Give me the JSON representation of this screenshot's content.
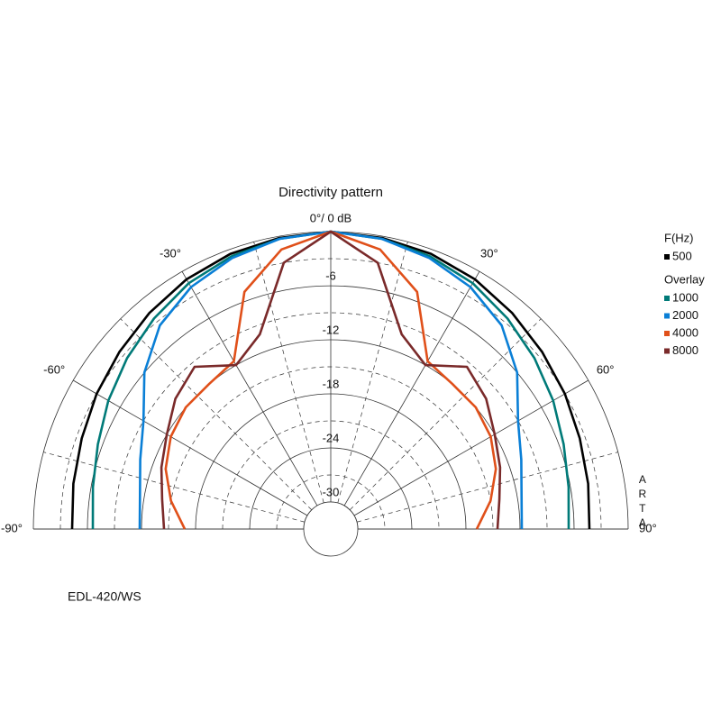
{
  "chart_data": {
    "type": "polar",
    "title": "Directivity pattern",
    "x": [
      -90,
      -80,
      -70,
      -60,
      -50,
      -40,
      -30,
      -20,
      -10,
      0,
      10,
      20,
      30,
      40,
      50,
      60,
      70,
      80,
      90
    ],
    "series": [
      {
        "name": "500",
        "color": "#000000",
        "values": [
          -4.3,
          -4,
          -3.6,
          -3,
          -2.4,
          -1.7,
          -1,
          -0.5,
          -0.2,
          0,
          -0.2,
          -0.5,
          -1,
          -1.7,
          -2.4,
          -3,
          -3.6,
          -4,
          -4.3
        ]
      },
      {
        "name": "1000",
        "color": "#007a78",
        "values": [
          -6.6,
          -6.2,
          -5.5,
          -4.5,
          -3.5,
          -2.5,
          -1.5,
          -0.8,
          -0.3,
          0,
          -0.3,
          -0.8,
          -1.5,
          -2.5,
          -3.5,
          -4.5,
          -5.5,
          -6.2,
          -6.6
        ]
      },
      {
        "name": "2000",
        "color": "#0a7fd6",
        "values": [
          -11.8,
          -11.5,
          -10.5,
          -9,
          -6,
          -3.5,
          -2,
          -1,
          -0.3,
          0,
          -0.3,
          -1,
          -2,
          -3.5,
          -6,
          -9,
          -10.5,
          -11.5,
          -11.8
        ]
      },
      {
        "name": "4000",
        "color": "#e0501a",
        "values": [
          -16.8,
          -15,
          -13.5,
          -12.5,
          -12,
          -12,
          -11.5,
          -5,
          -1.5,
          0,
          -1.5,
          -5,
          -11.5,
          -12,
          -12,
          -12.5,
          -13.5,
          -15,
          -16.8
        ]
      },
      {
        "name": "8000",
        "color": "#7a2a2a",
        "values": [
          -14.5,
          -14,
          -13,
          -12,
          -10.5,
          -9.5,
          -12,
          -10,
          -3,
          0,
          -3,
          -10,
          -12,
          -9.5,
          -10.5,
          -12,
          -13,
          -14,
          -14.5
        ]
      }
    ],
    "rlim": [
      -33,
      0
    ],
    "rticks": [
      -6,
      -12,
      -18,
      -24,
      -30
    ],
    "rminor": [
      -3,
      -9,
      -15,
      -21,
      -27
    ],
    "xticks": [
      {
        "value": -90,
        "label": "-90°"
      },
      {
        "value": -60,
        "label": "-60°"
      },
      {
        "value": -30,
        "label": "-30°"
      },
      {
        "value": 0,
        "label": "0°/ 0 dB"
      },
      {
        "value": 30,
        "label": "30°"
      },
      {
        "value": 60,
        "label": "60°"
      },
      {
        "value": 90,
        "label": "90°"
      }
    ],
    "xminor": [
      -75,
      -45,
      -15,
      15,
      45,
      75
    ],
    "legend_title": "F(Hz)",
    "overlay_label": "Overlay",
    "watermark": "ARTA",
    "footnote": "EDL-420/WS"
  }
}
